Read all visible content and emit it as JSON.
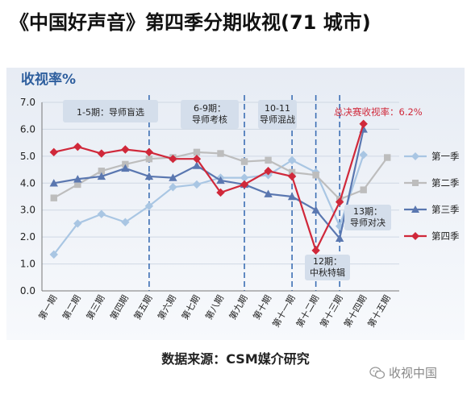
{
  "page": {
    "title": "《中国好声音》第四季分期收视(71 城市)",
    "source": "数据来源：CSM媒介研究",
    "watermark": "收视中国",
    "watermark_icon": "wechat-icon"
  },
  "chart_data": {
    "type": "line",
    "title": "",
    "ylabel": "收视率%",
    "xlabel": "",
    "ylim": [
      0,
      7
    ],
    "yticks": [
      "0.0",
      "1.0",
      "2.0",
      "3.0",
      "4.0",
      "5.0",
      "6.0",
      "7.0"
    ],
    "categories": [
      "第一期",
      "第二期",
      "第三期",
      "第四期",
      "第五期",
      "第六期",
      "第七期",
      "第八期",
      "第九期",
      "第十期",
      "第十一期",
      "第十二期",
      "第十三期",
      "第十四期",
      "第十五期"
    ],
    "series": [
      {
        "name": "第一季",
        "color": "#a9c6e3",
        "marker": "diamond",
        "values": [
          1.35,
          2.5,
          2.85,
          2.55,
          3.15,
          3.85,
          3.95,
          4.2,
          4.2,
          4.3,
          4.85,
          4.4,
          2.4,
          5.05,
          null
        ]
      },
      {
        "name": "第二季",
        "color": "#bdbdbd",
        "marker": "square",
        "values": [
          3.45,
          3.95,
          4.45,
          4.7,
          4.9,
          4.95,
          5.15,
          5.1,
          4.8,
          4.85,
          4.4,
          4.3,
          3.4,
          3.75,
          4.95
        ]
      },
      {
        "name": "第三季",
        "color": "#5a77b0",
        "marker": "triangle",
        "values": [
          4.0,
          4.15,
          4.25,
          4.55,
          4.25,
          4.2,
          4.65,
          4.1,
          3.95,
          3.6,
          3.5,
          3.0,
          1.95,
          6.0,
          null
        ]
      },
      {
        "name": "第四季",
        "color": "#d0283a",
        "marker": "diamond",
        "values": [
          5.15,
          5.35,
          5.1,
          5.25,
          5.15,
          4.9,
          4.9,
          3.65,
          3.95,
          4.45,
          4.25,
          1.5,
          3.3,
          6.2,
          null
        ]
      }
    ],
    "legend_position": "right",
    "phases": [
      "1-5期：导师盲选",
      "6-9期：\n导师考核",
      "10-11\n导师混战"
    ],
    "annotations": {
      "final": "总决赛收视率：6.2%",
      "ep13": "13期：\n导师对决",
      "ep12": "12期：\n中秋特辑"
    }
  }
}
